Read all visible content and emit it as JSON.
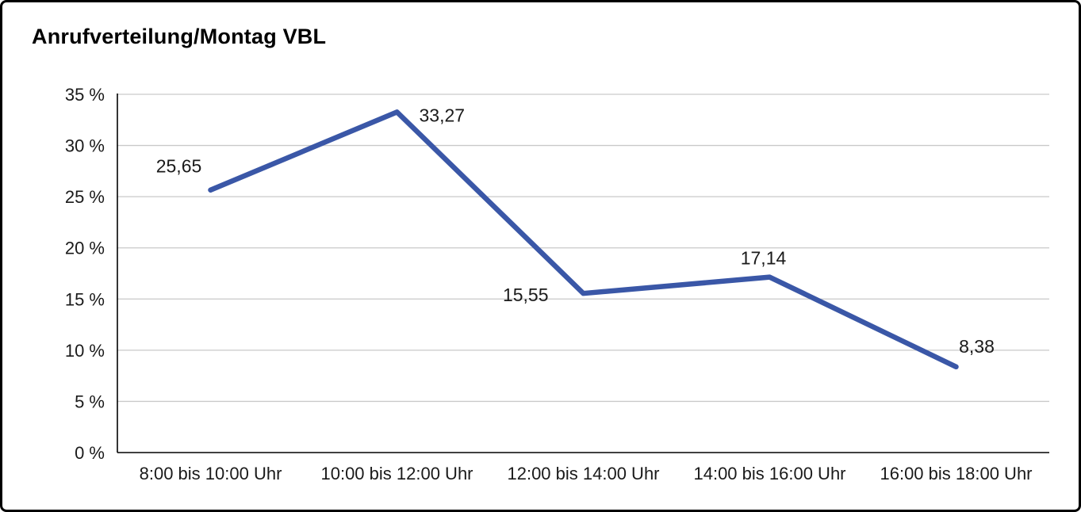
{
  "panel": {
    "title": "Anrufverteilung/Montag VBL"
  },
  "chart_data": {
    "type": "line",
    "title": "Anrufverteilung/Montag VBL",
    "categories": [
      "8:00 bis 10:00 Uhr",
      "10:00 bis 12:00 Uhr",
      "12:00 bis 14:00 Uhr",
      "14:00 bis 16:00 Uhr",
      "16:00 bis 18:00 Uhr"
    ],
    "values": [
      25.65,
      33.27,
      15.55,
      17.14,
      8.38
    ],
    "data_labels": [
      "25,65",
      "33,27",
      "15,55",
      "17,14",
      "8,38"
    ],
    "xlabel": "",
    "ylabel": "",
    "ylim": [
      0,
      35
    ],
    "ytick_step": 5,
    "ytick_labels": [
      "0 %",
      "5 %",
      "10 %",
      "15 %",
      "20 %",
      "25 %",
      "30 %",
      "35 %"
    ],
    "grid": true,
    "legend": "none",
    "colors": {
      "line": "#3A57A7",
      "gridline": "#c9c9c9",
      "axis": "#000000",
      "text": "#1a1a1a"
    }
  }
}
